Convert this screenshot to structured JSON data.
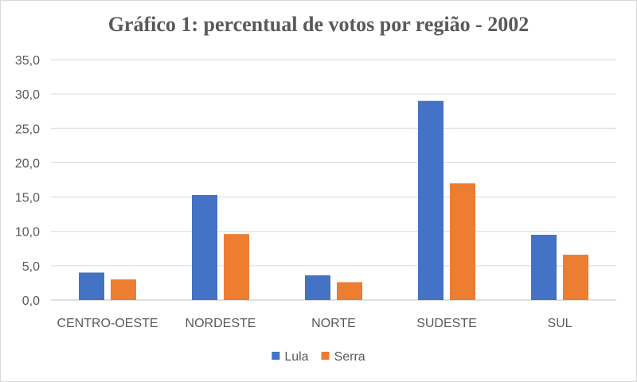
{
  "chart_data": {
    "type": "bar",
    "title": "Gráfico 1: percentual de votos por região - 2002",
    "categories": [
      "CENTRO-OESTE",
      "NORDESTE",
      "NORTE",
      "SUDESTE",
      "SUL"
    ],
    "series": [
      {
        "name": "Lula",
        "color": "#4472c4",
        "values": [
          4.0,
          15.3,
          3.6,
          29.0,
          9.5
        ]
      },
      {
        "name": "Serra",
        "color": "#ed7d31",
        "values": [
          3.0,
          9.6,
          2.6,
          17.0,
          6.6
        ]
      }
    ],
    "y_ticks": [
      "0,0",
      "5,0",
      "10,0",
      "15,0",
      "20,0",
      "25,0",
      "30,0",
      "35,0"
    ],
    "ylim": [
      0,
      35
    ],
    "grid": true,
    "legend_position": "bottom"
  }
}
